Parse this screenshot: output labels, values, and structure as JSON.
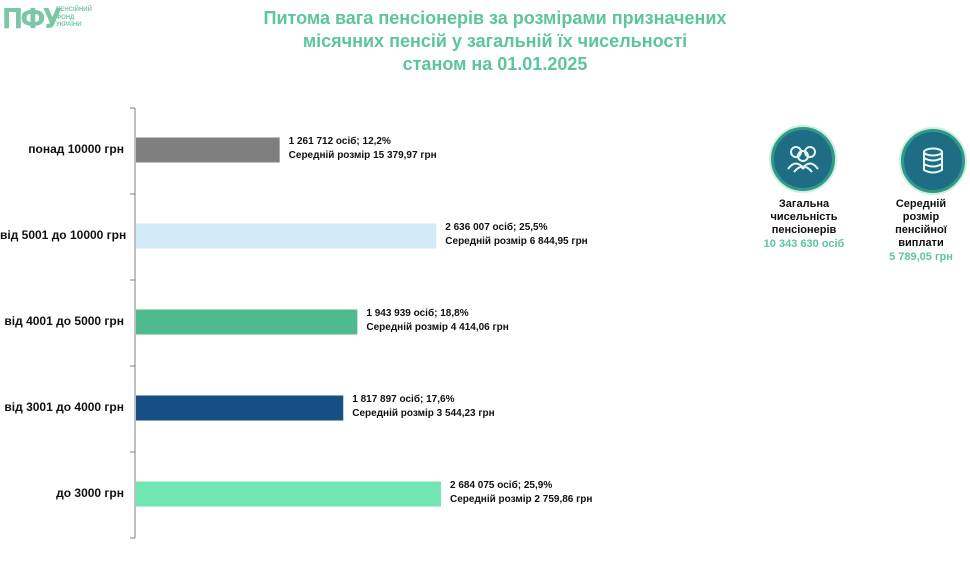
{
  "logo": {
    "mark": "ПФУ",
    "lines": [
      "ПЕНСІЙНИЙ",
      "ФОНД",
      "УКРАЇНИ"
    ]
  },
  "title": [
    "Питома вага пенсіонерів за розмірами призначених",
    "місячних пенсій у загальній їх чисельності",
    "станом на 01.01.2025"
  ],
  "kpi": {
    "total": {
      "label_lines": [
        "Загальна",
        "чисельність",
        "пенсіонерів"
      ],
      "value": "10 343 630 осіб",
      "icon": "people-icon"
    },
    "avg": {
      "label_lines": [
        "Середній",
        "розмір",
        "пенсійної виплати"
      ],
      "value": "5 789,05 грн",
      "icon": "coins-icon"
    }
  },
  "colors": {
    "accent": "#5dc59a",
    "axis": "#7f7f7f"
  },
  "chart_data": {
    "type": "bar",
    "orientation": "horizontal",
    "categories": [
      "понад 10000 грн",
      "від 5001 до 10000 грн",
      "від 4001 до 5000 грн",
      "від 3001 до 4000 грн",
      "до 3000 грн"
    ],
    "values_percent": [
      12.2,
      25.5,
      18.8,
      17.6,
      25.9
    ],
    "counts": [
      1261712,
      2636007,
      1943939,
      1817897,
      2684075
    ],
    "avg_size": [
      15379.97,
      6844.95,
      4414.06,
      3544.23,
      2759.86
    ],
    "labels_line1": [
      "1 261 712 осіб;  12,2%",
      "2 636 007 осіб; 25,5%",
      "1 943 939 осіб; 18,8%",
      "1 817 897 осіб; 17,6%",
      "2 684 075 осіб; 25,9%"
    ],
    "labels_line2": [
      "Середній розмір 15 379,97 грн",
      "Середній розмір 6 844,95 грн",
      "Середній розмір 4 414,06 грн",
      "Середній розмір 3 544,23 грн",
      "Середній розмір 2 759,86 грн"
    ],
    "colors": [
      "#7f7f7f",
      "#d2ebf8",
      "#4fb98f",
      "#164f86",
      "#72e6b2"
    ],
    "xlim": [
      0,
      25.9
    ],
    "legend": "none",
    "grid": false
  }
}
